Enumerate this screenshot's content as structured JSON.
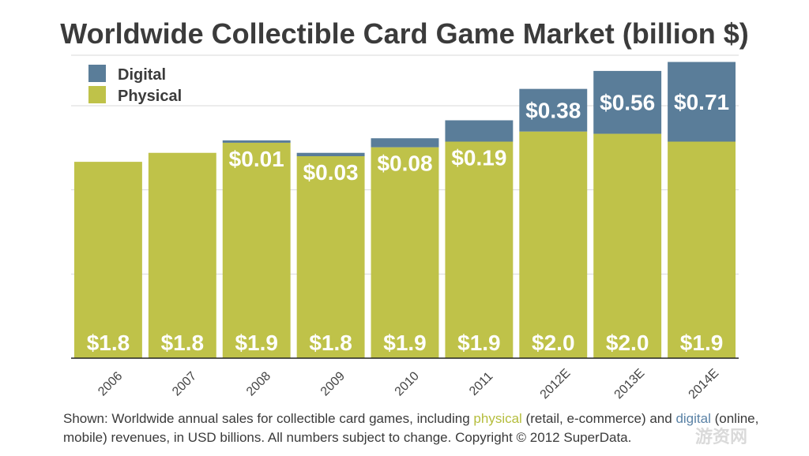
{
  "title": "Worldwide Collectible Card Game Market (billion $)",
  "caption": {
    "prefix": "Shown: Worldwide annual sales for collectible card games, including ",
    "physical_word": "physical",
    "middle": " (retail, e-commerce) and ",
    "digital_word": "digital",
    "suffix": " (online, mobile) revenues, in USD billions. All numbers subject to change. Copyright © 2012 SuperData."
  },
  "watermark": "游资网",
  "colors": {
    "digital": "#5a7d99",
    "physical": "#bfc249",
    "gridline": "#d9d9d9",
    "axis": "#222222"
  },
  "chart_data": {
    "type": "bar",
    "stacked": true,
    "title": "Worldwide Collectible Card Game Market (billion $)",
    "categories": [
      "2006",
      "2007",
      "2008",
      "2009",
      "2010",
      "2011",
      "2012E",
      "2013E",
      "2014E"
    ],
    "series": [
      {
        "name": "Physical",
        "values": [
          1.75,
          1.83,
          1.92,
          1.8,
          1.88,
          1.93,
          2.02,
          2.0,
          1.93
        ],
        "labels": [
          "$1.8",
          "$1.8",
          "$1.9",
          "$1.8",
          "$1.9",
          "$1.9",
          "$2.0",
          "$2.0",
          "$1.9"
        ]
      },
      {
        "name": "Digital",
        "values": [
          0,
          0,
          0.01,
          0.03,
          0.08,
          0.19,
          0.38,
          0.56,
          0.71
        ],
        "labels": [
          "",
          "",
          "$0.01",
          "$0.03",
          "$0.08",
          "$0.19",
          "$0.38",
          "$0.56",
          "$0.71"
        ]
      }
    ],
    "ylim": [
      0,
      2.7
    ],
    "ygrid_values": [
      0.75,
      1.5,
      2.25
    ],
    "grid": true,
    "legend": {
      "position": "top-left",
      "entries": [
        "Digital",
        "Physical"
      ]
    },
    "xlabel": "",
    "ylabel": ""
  }
}
